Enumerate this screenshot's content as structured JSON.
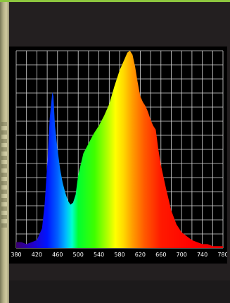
{
  "chart_data": {
    "type": "area",
    "title": "",
    "xlabel": "",
    "ylabel": "",
    "xlim": [
      380,
      780
    ],
    "ylim": [
      0,
      1.0
    ],
    "grid": true,
    "x_ticks": [
      "380",
      "420",
      "460",
      "500",
      "540",
      "580",
      "620",
      "660",
      "700",
      "740",
      "780"
    ],
    "series": [
      {
        "x": [
          380,
          390,
          400,
          410,
          420,
          430,
          435,
          440,
          445,
          448,
          450,
          452,
          455,
          460,
          465,
          470,
          475,
          480,
          485,
          490,
          495,
          500,
          510,
          520,
          530,
          540,
          550,
          560,
          570,
          580,
          590,
          595,
          600,
          605,
          610,
          615,
          620,
          625,
          630,
          635,
          640,
          645,
          650,
          655,
          660,
          670,
          680,
          690,
          700,
          710,
          720,
          730,
          740,
          750,
          760,
          770,
          780
        ],
        "y": [
          0.03,
          0.03,
          0.02,
          0.03,
          0.04,
          0.1,
          0.22,
          0.42,
          0.66,
          0.74,
          0.79,
          0.77,
          0.62,
          0.5,
          0.4,
          0.33,
          0.28,
          0.24,
          0.22,
          0.23,
          0.27,
          0.37,
          0.48,
          0.53,
          0.58,
          0.62,
          0.67,
          0.73,
          0.82,
          0.9,
          0.96,
          0.99,
          1.0,
          0.98,
          0.92,
          0.84,
          0.77,
          0.74,
          0.72,
          0.69,
          0.65,
          0.62,
          0.6,
          0.5,
          0.42,
          0.3,
          0.19,
          0.12,
          0.08,
          0.06,
          0.04,
          0.03,
          0.02,
          0.02,
          0.01,
          0.01,
          0.01
        ]
      }
    ]
  }
}
